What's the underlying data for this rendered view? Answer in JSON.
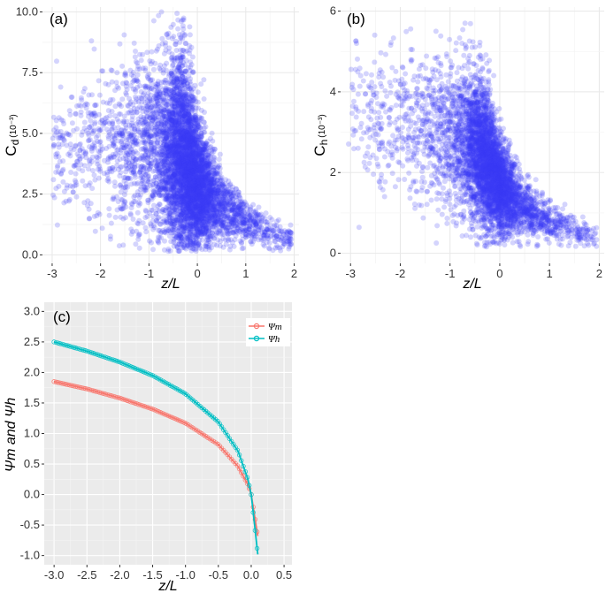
{
  "chart_data": [
    {
      "panel": "(a)",
      "type": "scatter",
      "title": "",
      "xlabel": "z/L",
      "ylabel_main": "C",
      "ylabel_sub": "d",
      "ylabel_unit": "(10⁻³)",
      "xlim": [
        -3.2,
        2.1
      ],
      "ylim": [
        -0.35,
        10.2
      ],
      "xticks": [
        -3,
        -2,
        -1,
        0,
        1,
        2
      ],
      "yticks": [
        0.0,
        2.5,
        5.0,
        7.5,
        10.0
      ],
      "ytick_labels": [
        "0.0",
        "2.5",
        "5.0",
        "7.5",
        "10.0"
      ],
      "grid": true,
      "point_color": "#3a3af5",
      "n_points": 6000,
      "trend": [
        {
          "x": -3.0,
          "y_center": 4.3,
          "y_spread": 1.4
        },
        {
          "x": -2.0,
          "y_center": 4.6,
          "y_spread": 1.5
        },
        {
          "x": -1.0,
          "y_center": 4.6,
          "y_spread": 1.8
        },
        {
          "x": -0.3,
          "y_center": 4.0,
          "y_spread": 2.2
        },
        {
          "x": 0.0,
          "y_center": 3.0,
          "y_spread": 1.3
        },
        {
          "x": 0.5,
          "y_center": 2.0,
          "y_spread": 0.7
        },
        {
          "x": 1.0,
          "y_center": 1.4,
          "y_spread": 0.45
        },
        {
          "x": 1.5,
          "y_center": 0.9,
          "y_spread": 0.35
        },
        {
          "x": 1.9,
          "y_center": 0.6,
          "y_spread": 0.25
        }
      ]
    },
    {
      "panel": "(b)",
      "type": "scatter",
      "title": "",
      "xlabel": "z/L",
      "ylabel_main": "C",
      "ylabel_sub": "h",
      "ylabel_unit": "(10⁻³)",
      "xlim": [
        -3.2,
        2.1
      ],
      "ylim": [
        -0.25,
        6.1
      ],
      "xticks": [
        -3,
        -2,
        -1,
        0,
        1,
        2
      ],
      "yticks": [
        0,
        2,
        4,
        6
      ],
      "ytick_labels": [
        "0",
        "2",
        "4",
        "6"
      ],
      "grid": true,
      "point_color": "#3a3af5",
      "n_points": 5000,
      "trend": [
        {
          "x": -3.0,
          "y_center": 3.4,
          "y_spread": 0.9
        },
        {
          "x": -2.0,
          "y_center": 3.2,
          "y_spread": 0.9
        },
        {
          "x": -1.0,
          "y_center": 3.0,
          "y_spread": 1.0
        },
        {
          "x": -0.3,
          "y_center": 2.4,
          "y_spread": 0.9
        },
        {
          "x": 0.0,
          "y_center": 1.7,
          "y_spread": 0.6
        },
        {
          "x": 0.5,
          "y_center": 1.1,
          "y_spread": 0.35
        },
        {
          "x": 1.0,
          "y_center": 0.8,
          "y_spread": 0.25
        },
        {
          "x": 1.5,
          "y_center": 0.55,
          "y_spread": 0.2
        },
        {
          "x": 1.9,
          "y_center": 0.35,
          "y_spread": 0.15
        }
      ]
    },
    {
      "panel": "(c)",
      "type": "line",
      "title": "",
      "xlabel": "z/L",
      "ylabel": "Ψm and Ψh",
      "xlim": [
        -3.15,
        0.62
      ],
      "ylim": [
        -1.15,
        3.15
      ],
      "xticks": [
        -3.0,
        -2.5,
        -2.0,
        -1.5,
        -1.0,
        -0.5,
        0.0,
        0.5
      ],
      "xtick_labels": [
        "-3.0",
        "-2.5",
        "-2.0",
        "-1.5",
        "-1.0",
        "-0.5",
        "0.0",
        "0.5"
      ],
      "yticks": [
        -1.0,
        -0.5,
        0.0,
        0.5,
        1.0,
        1.5,
        2.0,
        2.5,
        3.0
      ],
      "ytick_labels": [
        "-1.0",
        "-0.5",
        "0.0",
        "0.5",
        "1.0",
        "1.5",
        "2.0",
        "2.5",
        "3.0"
      ],
      "grid": true,
      "background": "#ebebeb",
      "legend_position": "top-right",
      "series": [
        {
          "name": "Ψm",
          "color": "#f8766d",
          "x": [
            -3.0,
            -2.5,
            -2.0,
            -1.5,
            -1.0,
            -0.5,
            -0.2,
            -0.05,
            0.0,
            0.05,
            0.1
          ],
          "y": [
            1.85,
            1.73,
            1.58,
            1.4,
            1.17,
            0.82,
            0.46,
            0.16,
            0.0,
            -0.34,
            -0.68
          ]
        },
        {
          "name": "Ψh",
          "color": "#00bfc4",
          "x": [
            -3.0,
            -2.5,
            -2.0,
            -1.5,
            -1.0,
            -0.5,
            -0.2,
            -0.05,
            0.0,
            0.05,
            0.1
          ],
          "y": [
            2.5,
            2.35,
            2.17,
            1.95,
            1.65,
            1.19,
            0.71,
            0.25,
            0.0,
            -0.49,
            -0.98
          ]
        }
      ]
    }
  ]
}
